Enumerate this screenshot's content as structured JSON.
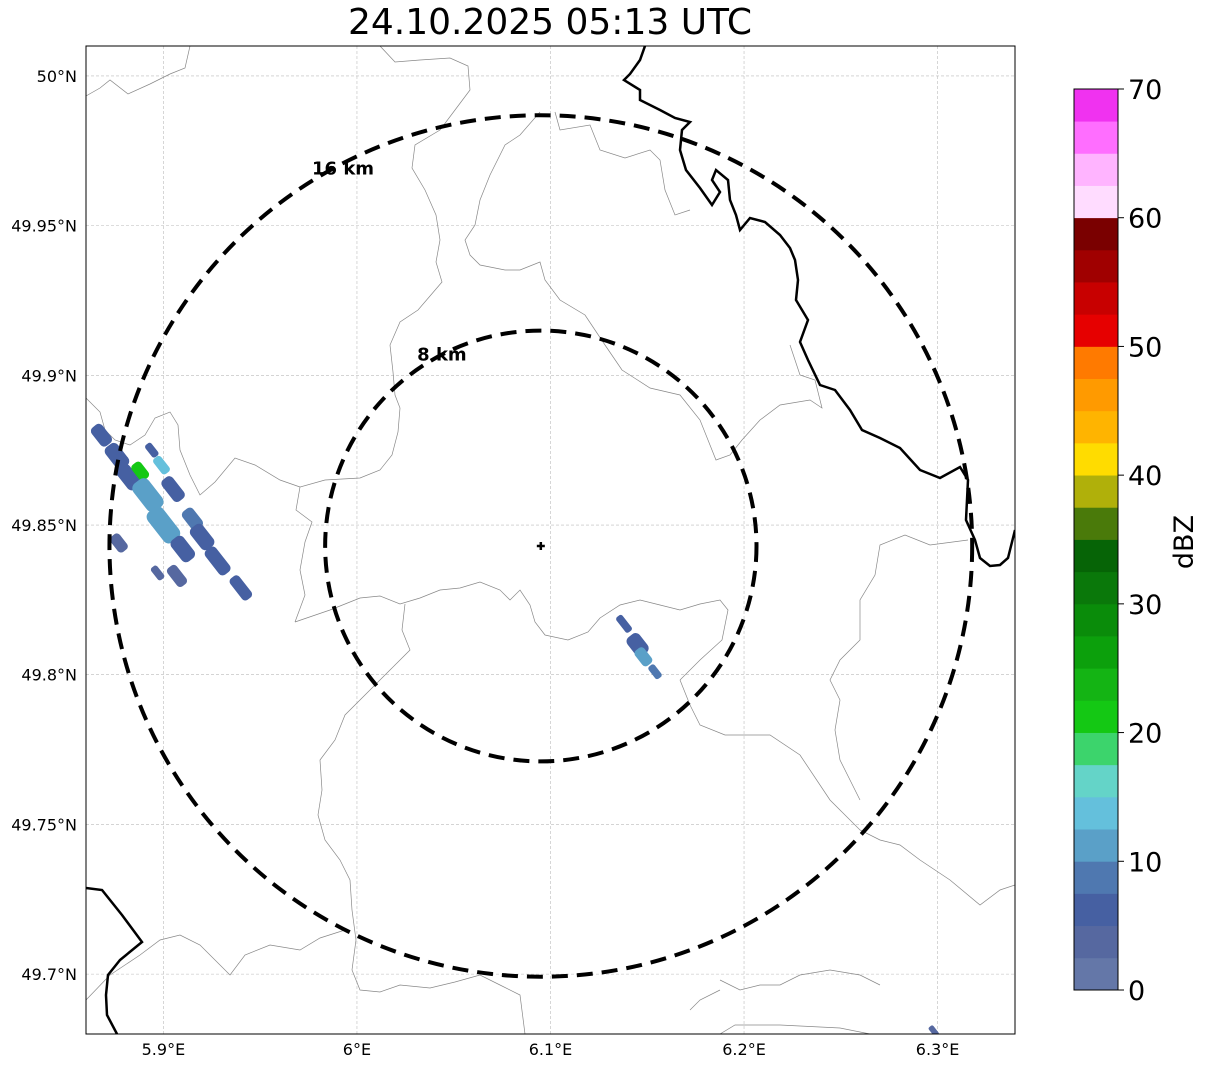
{
  "title": "24.10.2025 05:13 UTC",
  "map": {
    "lon_range": [
      5.86,
      6.34
    ],
    "lat_range": [
      49.68,
      50.01
    ],
    "x_ticks": [
      {
        "value": 5.9,
        "label": "5.9°E"
      },
      {
        "value": 6.0,
        "label": "6°E"
      },
      {
        "value": 6.1,
        "label": "6.1°E"
      },
      {
        "value": 6.2,
        "label": "6.2°E"
      },
      {
        "value": 6.3,
        "label": "6.3°E"
      }
    ],
    "y_ticks": [
      {
        "value": 50.0,
        "label": "50°N"
      },
      {
        "value": 49.95,
        "label": "49.95°N"
      },
      {
        "value": 49.9,
        "label": "49.9°N"
      },
      {
        "value": 49.85,
        "label": "49.85°N"
      },
      {
        "value": 49.8,
        "label": "49.8°N"
      },
      {
        "value": 49.75,
        "label": "49.75°N"
      },
      {
        "value": 49.7,
        "label": "49.7°N"
      }
    ],
    "radar_center": {
      "lon": 6.095,
      "lat": 49.843
    },
    "range_rings": [
      {
        "label": "8 km",
        "radius_km": 8
      },
      {
        "label": "16 km",
        "radius_km": 16
      }
    ],
    "grid": true
  },
  "colorbar": {
    "label": "dBZ",
    "min": 0,
    "max": 70,
    "step": 2.5,
    "tick_labels": [
      "0",
      "10",
      "20",
      "30",
      "40",
      "50",
      "60",
      "70"
    ],
    "colors": [
      "#6477a8",
      "#5668a0",
      "#4660a2",
      "#4f78b0",
      "#5aa0c8",
      "#64c0dc",
      "#64d4c8",
      "#3cd46c",
      "#14c814",
      "#14b414",
      "#0ca00c",
      "#0a8c0a",
      "#0a780a",
      "#066406",
      "#4a7a0a",
      "#b0b00a",
      "#ffdc00",
      "#ffb400",
      "#ff9a00",
      "#ff7a00",
      "#e60000",
      "#c80000",
      "#a00000",
      "#7a0000",
      "#ffdcff",
      "#ffb4ff",
      "#ff6eff",
      "#f032f0"
    ]
  },
  "echoes": [
    {
      "lon": 5.868,
      "lat": 49.88,
      "len": 0.012,
      "wid": 0.007,
      "dbz": 5
    },
    {
      "lon": 5.876,
      "lat": 49.873,
      "len": 0.014,
      "wid": 0.008,
      "dbz": 7
    },
    {
      "lon": 5.882,
      "lat": 49.866,
      "len": 0.014,
      "wid": 0.008,
      "dbz": 5
    },
    {
      "lon": 5.888,
      "lat": 49.868,
      "len": 0.01,
      "wid": 0.006,
      "dbz": 20
    },
    {
      "lon": 5.892,
      "lat": 49.86,
      "len": 0.018,
      "wid": 0.01,
      "dbz": 12
    },
    {
      "lon": 5.899,
      "lat": 49.87,
      "len": 0.01,
      "wid": 0.005,
      "dbz": 14
    },
    {
      "lon": 5.9,
      "lat": 49.85,
      "len": 0.02,
      "wid": 0.01,
      "dbz": 11
    },
    {
      "lon": 5.905,
      "lat": 49.862,
      "len": 0.014,
      "wid": 0.007,
      "dbz": 7
    },
    {
      "lon": 5.91,
      "lat": 49.842,
      "len": 0.014,
      "wid": 0.008,
      "dbz": 6
    },
    {
      "lon": 5.915,
      "lat": 49.852,
      "len": 0.012,
      "wid": 0.007,
      "dbz": 9
    },
    {
      "lon": 5.92,
      "lat": 49.846,
      "len": 0.014,
      "wid": 0.008,
      "dbz": 5
    },
    {
      "lon": 5.928,
      "lat": 49.838,
      "len": 0.016,
      "wid": 0.007,
      "dbz": 5
    },
    {
      "lon": 5.94,
      "lat": 49.829,
      "len": 0.014,
      "wid": 0.006,
      "dbz": 6
    },
    {
      "lon": 5.877,
      "lat": 49.844,
      "len": 0.01,
      "wid": 0.006,
      "dbz": 4
    },
    {
      "lon": 5.907,
      "lat": 49.833,
      "len": 0.012,
      "wid": 0.006,
      "dbz": 4
    },
    {
      "lon": 5.897,
      "lat": 49.834,
      "len": 0.008,
      "wid": 0.004,
      "dbz": 3
    },
    {
      "lon": 5.894,
      "lat": 49.875,
      "len": 0.008,
      "wid": 0.004,
      "dbz": 5
    },
    {
      "lon": 6.138,
      "lat": 49.817,
      "len": 0.01,
      "wid": 0.004,
      "dbz": 7
    },
    {
      "lon": 6.145,
      "lat": 49.81,
      "len": 0.012,
      "wid": 0.008,
      "dbz": 6
    },
    {
      "lon": 6.148,
      "lat": 49.806,
      "len": 0.01,
      "wid": 0.006,
      "dbz": 11
    },
    {
      "lon": 6.154,
      "lat": 49.801,
      "len": 0.008,
      "wid": 0.004,
      "dbz": 8
    },
    {
      "lon": 6.298,
      "lat": 49.681,
      "len": 0.006,
      "wid": 0.003,
      "dbz": 4
    }
  ]
}
